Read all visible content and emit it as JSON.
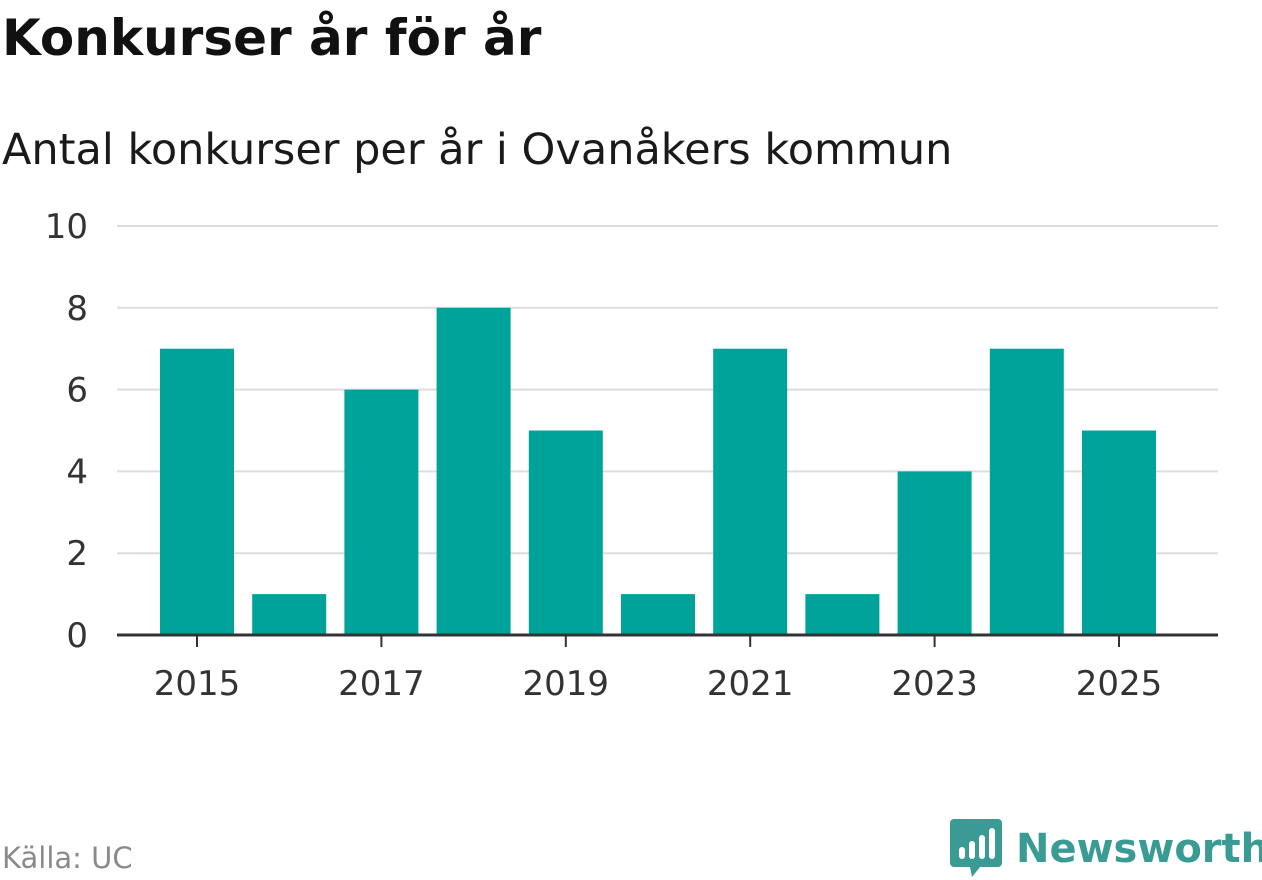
{
  "header": {
    "title": "Konkurser år för år",
    "subtitle": "Antal konkurser per år i Ovanåkers kommun"
  },
  "footer": {
    "source": "Källa: UC",
    "brand": "Newsworthy",
    "brand_icon": "bar-chart-icon"
  },
  "colors": {
    "bar": "#00a39a",
    "grid": "#dddddd",
    "axis": "#333333",
    "brand": "#3a9b94"
  },
  "chart_data": {
    "type": "bar",
    "title": "Konkurser år för år",
    "subtitle": "Antal konkurser per år i Ovanåkers kommun",
    "categories": [
      2015,
      2016,
      2017,
      2018,
      2019,
      2020,
      2021,
      2022,
      2023,
      2024,
      2025
    ],
    "values": [
      7,
      1,
      6,
      8,
      5,
      1,
      7,
      1,
      4,
      7,
      5
    ],
    "x_tick_labels": [
      "2015",
      "2017",
      "2019",
      "2021",
      "2023",
      "2025"
    ],
    "y_ticks": [
      0,
      2,
      4,
      6,
      8,
      10
    ],
    "ylim": [
      0,
      10
    ],
    "xlabel": "",
    "ylabel": "",
    "grid": true,
    "legend": false
  }
}
